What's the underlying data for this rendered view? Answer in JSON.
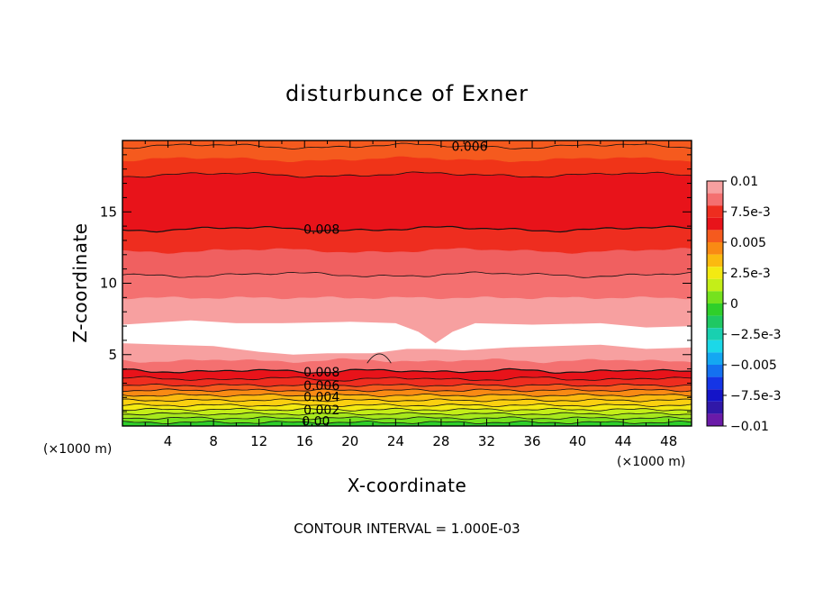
{
  "chart_data": {
    "type": "contour",
    "title": "disturbunce of Exner",
    "xlabel": "X-coordinate",
    "ylabel": "Z-coordinate",
    "x_unit": "(×1000 m)",
    "y_unit": "(×1000 m)",
    "xlim": [
      0,
      50
    ],
    "ylim": [
      0,
      20
    ],
    "x_ticks": [
      4,
      8,
      12,
      16,
      20,
      24,
      28,
      32,
      36,
      40,
      44,
      48
    ],
    "y_ticks": [
      5,
      10,
      15
    ],
    "contour_interval_text": "CONTOUR INTERVAL = 1.000E-03",
    "colorbar": {
      "range": [
        -0.01,
        0.01
      ],
      "labels": [
        "0.01",
        "7.5e-3",
        "0.005",
        "2.5e-3",
        "0",
        "−2.5e-3",
        "−0.005",
        "−7.5e-3",
        "−0.01"
      ],
      "label_values": [
        0.01,
        0.0075,
        0.005,
        0.0025,
        0,
        -0.0025,
        -0.005,
        -0.0075,
        -0.01
      ],
      "levels": [
        {
          "lo": 0.009,
          "hi": 0.01,
          "color": "#f7a0a0"
        },
        {
          "lo": 0.008,
          "hi": 0.009,
          "color": "#f47070"
        },
        {
          "lo": 0.007,
          "hi": 0.008,
          "color": "#ee2d1f"
        },
        {
          "lo": 0.006,
          "hi": 0.007,
          "color": "#e8131a"
        },
        {
          "lo": 0.005,
          "hi": 0.006,
          "color": "#f55a1e"
        },
        {
          "lo": 0.004,
          "hi": 0.005,
          "color": "#f98a14"
        },
        {
          "lo": 0.003,
          "hi": 0.004,
          "color": "#fbba10"
        },
        {
          "lo": 0.002,
          "hi": 0.003,
          "color": "#f3ea12"
        },
        {
          "lo": 0.001,
          "hi": 0.002,
          "color": "#c4ee18"
        },
        {
          "lo": 0.0,
          "hi": 0.001,
          "color": "#75e21e"
        },
        {
          "lo": -0.001,
          "hi": 0.0,
          "color": "#2fcf2a"
        },
        {
          "lo": -0.002,
          "hi": -0.001,
          "color": "#1fc863"
        },
        {
          "lo": -0.003,
          "hi": -0.002,
          "color": "#19d0b0"
        },
        {
          "lo": -0.004,
          "hi": -0.003,
          "color": "#1cd8e8"
        },
        {
          "lo": -0.005,
          "hi": -0.004,
          "color": "#14a7f2"
        },
        {
          "lo": -0.006,
          "hi": -0.005,
          "color": "#1471f0"
        },
        {
          "lo": -0.007,
          "hi": -0.006,
          "color": "#1535e6"
        },
        {
          "lo": -0.008,
          "hi": -0.007,
          "color": "#1414c8"
        },
        {
          "lo": -0.009,
          "hi": -0.008,
          "color": "#3018a8"
        },
        {
          "lo": -0.01,
          "hi": -0.009,
          "color": "#6a1aa8"
        }
      ]
    },
    "bands": [
      {
        "z0": 0.0,
        "z1": 0.25,
        "color": "#2fcf2a"
      },
      {
        "z0": 0.25,
        "z1": 0.55,
        "color": "#75e21e"
      },
      {
        "z0": 0.55,
        "z1": 0.85,
        "color": "#a6e81c"
      },
      {
        "z0": 0.85,
        "z1": 1.15,
        "color": "#c4ee18"
      },
      {
        "z0": 1.15,
        "z1": 1.45,
        "color": "#f3ea12"
      },
      {
        "z0": 1.45,
        "z1": 1.8,
        "color": "#fbd010"
      },
      {
        "z0": 1.8,
        "z1": 2.15,
        "color": "#fbba10"
      },
      {
        "z0": 2.15,
        "z1": 2.5,
        "color": "#f98a14"
      },
      {
        "z0": 2.5,
        "z1": 2.85,
        "color": "#f55a1e"
      },
      {
        "z0": 2.85,
        "z1": 3.3,
        "color": "#ee2d1f"
      },
      {
        "z0": 3.3,
        "z1": 3.85,
        "color": "#e8131a"
      },
      {
        "z0": 3.85,
        "z1": 4.6,
        "color": "#f47070"
      },
      {
        "z0": 4.6,
        "z1": 9.0,
        "color": "#f7a0a0"
      },
      {
        "z0": 9.0,
        "z1": 10.6,
        "color": "#f47070"
      },
      {
        "z0": 10.6,
        "z1": 12.3,
        "color": "#f06060"
      },
      {
        "z0": 12.3,
        "z1": 13.8,
        "color": "#ee2d1f"
      },
      {
        "z0": 13.8,
        "z1": 17.6,
        "color": "#e8131a"
      },
      {
        "z0": 17.6,
        "z1": 18.7,
        "color": "#f03418"
      },
      {
        "z0": 18.7,
        "z1": 20.0,
        "color": "#f55a1e"
      }
    ],
    "contour_lines": [
      0.25,
      0.55,
      0.85,
      1.15,
      1.45,
      1.8,
      2.15,
      2.5,
      2.85,
      3.3,
      3.85,
      10.6,
      13.8,
      17.6,
      19.6
    ],
    "white_region": {
      "description": "",
      "top": [
        [
          0,
          7.1
        ],
        [
          6,
          7.4
        ],
        [
          10,
          7.2
        ],
        [
          14,
          7.2
        ],
        [
          20,
          7.3
        ],
        [
          24,
          7.2
        ],
        [
          26,
          6.6
        ],
        [
          27.5,
          5.8
        ],
        [
          29,
          6.6
        ],
        [
          31,
          7.2
        ],
        [
          36,
          7.1
        ],
        [
          42,
          7.2
        ],
        [
          46,
          6.9
        ],
        [
          50,
          7.0
        ]
      ],
      "bottom": [
        [
          50,
          5.5
        ],
        [
          46,
          5.4
        ],
        [
          42,
          5.7
        ],
        [
          38,
          5.6
        ],
        [
          34,
          5.5
        ],
        [
          30,
          5.3
        ],
        [
          27.5,
          5.4
        ],
        [
          25,
          5.4
        ],
        [
          22,
          5.1
        ],
        [
          18,
          5.1
        ],
        [
          15,
          5.0
        ],
        [
          12,
          5.2
        ],
        [
          8,
          5.6
        ],
        [
          4,
          5.7
        ],
        [
          0,
          5.8
        ]
      ]
    },
    "contour_labels": [
      {
        "text": "0.006",
        "x": 30.5,
        "z": 19.6
      },
      {
        "text": "0.008",
        "x": 17.5,
        "z": 13.8
      },
      {
        "text": "0.008",
        "x": 17.5,
        "z": 3.8
      },
      {
        "text": "0.006",
        "x": 17.5,
        "z": 2.85
      },
      {
        "text": "0.004",
        "x": 17.5,
        "z": 2.05
      },
      {
        "text": "0.002",
        "x": 17.5,
        "z": 1.15
      },
      {
        "text": "0.00",
        "x": 17.0,
        "z": 0.35
      }
    ]
  }
}
